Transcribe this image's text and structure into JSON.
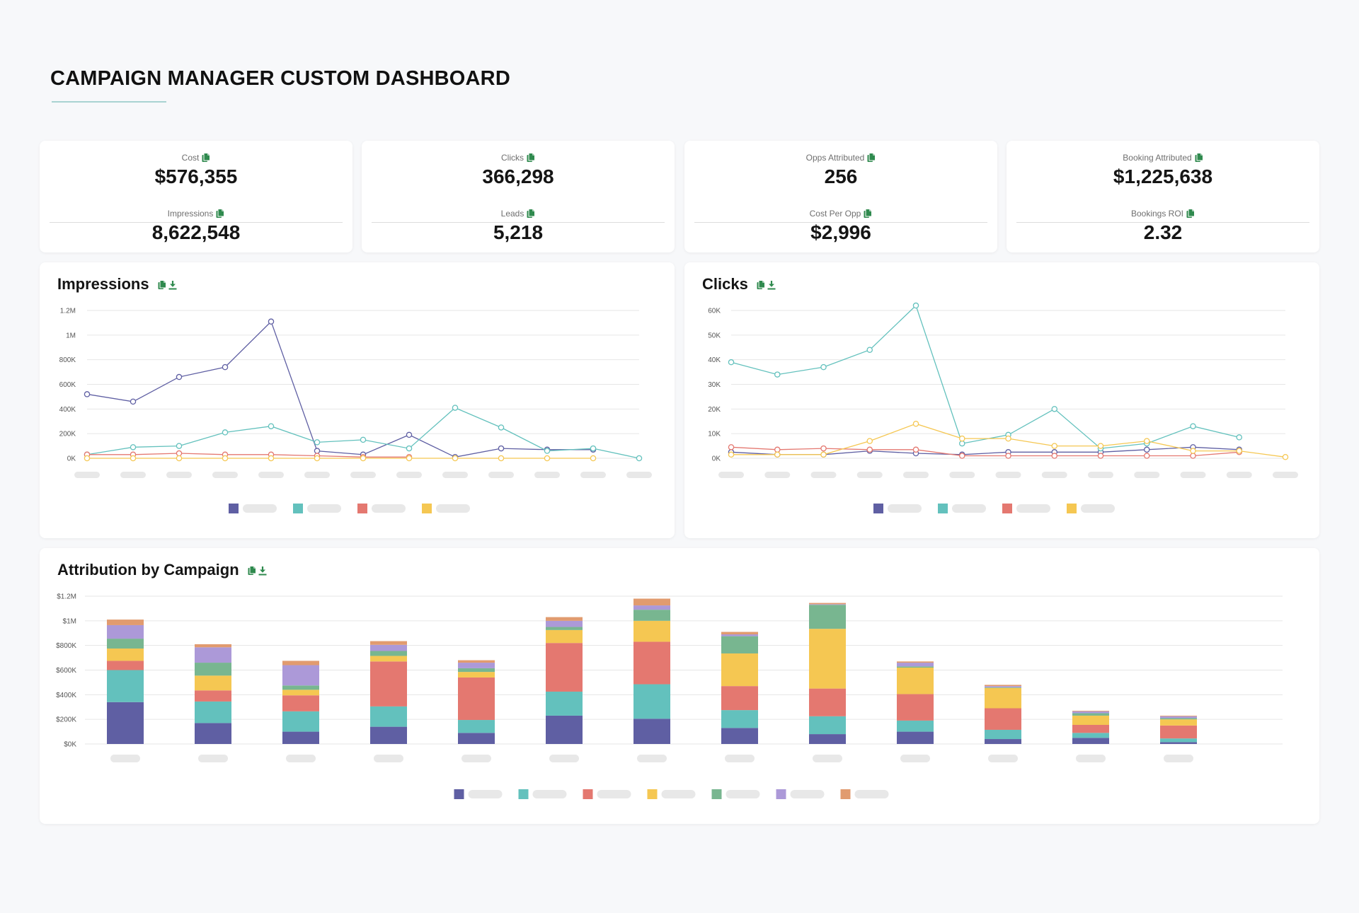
{
  "page": {
    "title": "CAMPAIGN MANAGER CUSTOM DASHBOARD"
  },
  "colors": {
    "series1": "#5f5fa3",
    "series2": "#63c1bd",
    "series3": "#e47870",
    "series4": "#f5c752",
    "series5": "#78b690",
    "series6": "#ac99d8",
    "series7": "#e19b6f",
    "icon_green": "#2f8a4e",
    "placeholder_gray": "#e8e8e8"
  },
  "kpis": [
    {
      "top": {
        "label": "Cost",
        "value": "$576,355"
      },
      "bottom": {
        "label": "Impressions",
        "value": "8,622,548"
      }
    },
    {
      "top": {
        "label": "Clicks",
        "value": "366,298"
      },
      "bottom": {
        "label": "Leads",
        "value": "5,218"
      }
    },
    {
      "top": {
        "label": "Opps Attributed",
        "value": "256"
      },
      "bottom": {
        "label": "Cost Per Opp",
        "value": "$2,996"
      }
    },
    {
      "top": {
        "label": "Booking Attributed",
        "value": "$1,225,638"
      },
      "bottom": {
        "label": "Bookings ROI",
        "value": "2.32"
      }
    }
  ],
  "icons": {
    "copy": "copy-icon",
    "download": "download-icon"
  },
  "chart_data": [
    {
      "id": "impressions",
      "type": "line",
      "title": "Impressions",
      "ylim": [
        0,
        1200000
      ],
      "yticks": [
        "0K",
        "200K",
        "400K",
        "600K",
        "800K",
        "1M",
        "1.2M"
      ],
      "grid": true,
      "legend": "bottom-center",
      "x_count": 13,
      "series": [
        {
          "values": [
            520000,
            460000,
            660000,
            740000,
            1110000,
            60000,
            30000,
            190000,
            10000,
            80000,
            70000,
            70000,
            null
          ]
        },
        {
          "values": [
            30000,
            90000,
            100000,
            210000,
            260000,
            130000,
            150000,
            80000,
            410000,
            250000,
            60000,
            80000,
            0
          ]
        },
        {
          "values": [
            30000,
            30000,
            40000,
            30000,
            30000,
            20000,
            10000,
            10000,
            null,
            null,
            null,
            null,
            null
          ]
        },
        {
          "values": [
            0,
            0,
            0,
            0,
            0,
            0,
            0,
            0,
            0,
            0,
            0,
            0,
            null
          ]
        }
      ]
    },
    {
      "id": "clicks",
      "type": "line",
      "title": "Clicks",
      "ylim": [
        0,
        60000
      ],
      "yticks": [
        "0K",
        "10K",
        "20K",
        "30K",
        "40K",
        "50K",
        "60K"
      ],
      "grid": true,
      "legend": "bottom-center",
      "x_count": 13,
      "series": [
        {
          "values": [
            2500,
            1500,
            1500,
            3000,
            2000,
            1500,
            2500,
            2500,
            2500,
            3500,
            4500,
            3500,
            null
          ]
        },
        {
          "values": [
            39000,
            34000,
            37000,
            44000,
            62000,
            6000,
            9500,
            20000,
            4000,
            6000,
            13000,
            8500,
            null
          ]
        },
        {
          "values": [
            4500,
            3500,
            4000,
            3500,
            3500,
            1000,
            1000,
            1000,
            1000,
            1000,
            1000,
            2500,
            null
          ]
        },
        {
          "values": [
            1500,
            1500,
            1500,
            7000,
            14000,
            8000,
            8000,
            5000,
            5000,
            7000,
            3000,
            3000,
            500
          ]
        }
      ]
    },
    {
      "id": "attribution",
      "type": "bar",
      "stacked": true,
      "title": "Attribution by Campaign",
      "ylim": [
        0,
        1200000
      ],
      "yticks": [
        "$0K",
        "$200K",
        "$400K",
        "$600K",
        "$800K",
        "$1M",
        "$1.2M"
      ],
      "grid": true,
      "legend": "bottom-center",
      "series": [
        {
          "values": [
            340000,
            170000,
            100000,
            140000,
            90000,
            230000,
            205000,
            130000,
            80000,
            100000,
            40000,
            50000,
            15000
          ]
        },
        {
          "values": [
            260000,
            175000,
            165000,
            165000,
            105000,
            195000,
            280000,
            145000,
            145000,
            90000,
            75000,
            40000,
            30000
          ]
        },
        {
          "values": [
            75000,
            90000,
            130000,
            365000,
            345000,
            395000,
            345000,
            195000,
            225000,
            215000,
            175000,
            65000,
            105000
          ]
        },
        {
          "values": [
            100000,
            120000,
            45000,
            45000,
            45000,
            105000,
            170000,
            265000,
            485000,
            215000,
            165000,
            75000,
            50000
          ]
        },
        {
          "values": [
            80000,
            105000,
            35000,
            40000,
            30000,
            25000,
            90000,
            140000,
            195000,
            10000,
            5000,
            20000,
            10000
          ]
        },
        {
          "values": [
            110000,
            125000,
            165000,
            50000,
            45000,
            50000,
            35000,
            15000,
            5000,
            30000,
            10000,
            15000,
            15000
          ]
        },
        {
          "values": [
            45000,
            25000,
            35000,
            30000,
            20000,
            30000,
            55000,
            20000,
            10000,
            10000,
            10000,
            5000,
            5000
          ]
        }
      ]
    }
  ]
}
